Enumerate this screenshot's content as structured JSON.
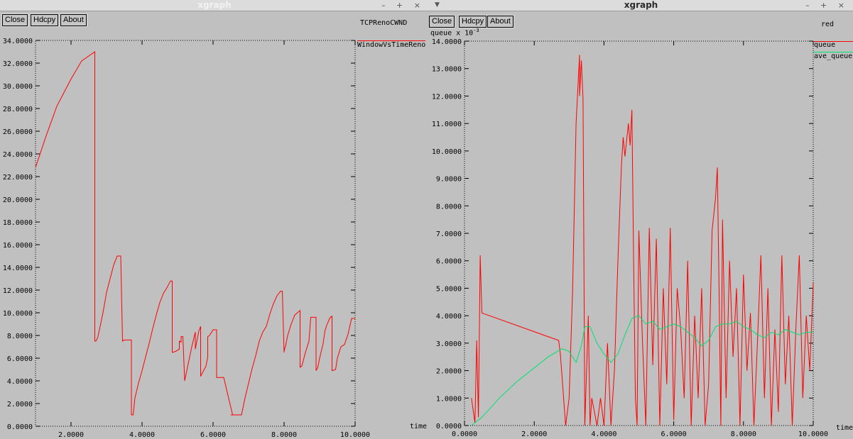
{
  "left_window": {
    "title": "xgraph",
    "wm_controls": "–  +  ×",
    "buttons": {
      "close": "Close",
      "hdcpy": "Hdcpy",
      "about": "About"
    },
    "graph_title": "TCPRenoCWND",
    "x_unit": "time",
    "legend": [
      {
        "label": "WindowVsTimeReno",
        "color": "#ff0000"
      }
    ]
  },
  "right_window": {
    "title": "xgraph",
    "wm_controls": "–  +  ×",
    "buttons": {
      "close": "Close",
      "hdcpy": "Hdcpy",
      "about": "About"
    },
    "graph_title": "red",
    "y_unit": "queue x 10",
    "y_unit_exponent": "-3",
    "x_unit": "time",
    "legend": [
      {
        "label": "queue",
        "color": "#ff0000"
      },
      {
        "label": "ave_queue",
        "color": "#00e070"
      }
    ]
  },
  "chart_data": [
    {
      "type": "line",
      "title": "TCPRenoCWND",
      "xlabel": "time",
      "ylabel": "",
      "xlim": [
        1.0,
        10.0
      ],
      "ylim": [
        0,
        34
      ],
      "x_ticks": [
        "2.0000",
        "4.0000",
        "6.0000",
        "8.0000",
        "10.0000"
      ],
      "x_tick_values": [
        2,
        4,
        6,
        8,
        10
      ],
      "y_ticks": [
        "0.0000",
        "2.0000",
        "4.0000",
        "6.0000",
        "8.0000",
        "10.0000",
        "12.0000",
        "14.0000",
        "16.0000",
        "18.0000",
        "20.0000",
        "22.0000",
        "24.0000",
        "26.0000",
        "28.0000",
        "30.0000",
        "32.0000",
        "34.0000"
      ],
      "y_tick_values": [
        0,
        2,
        4,
        6,
        8,
        10,
        12,
        14,
        16,
        18,
        20,
        22,
        24,
        26,
        28,
        30,
        32,
        34
      ],
      "grid": false,
      "legend_position": "top-right",
      "series": [
        {
          "name": "WindowVsTimeReno",
          "color": "#ff0000",
          "x": [
            1.0,
            1.3,
            1.6,
            2.0,
            2.3,
            2.67,
            2.67,
            2.7,
            2.75,
            2.8,
            2.9,
            3.0,
            3.1,
            3.2,
            3.3,
            3.4,
            3.45,
            3.45,
            3.5,
            3.6,
            3.7,
            3.7,
            3.75,
            3.8,
            3.9,
            4.0,
            4.1,
            4.2,
            4.3,
            4.4,
            4.5,
            4.6,
            4.7,
            4.8,
            4.85,
            4.85,
            4.95,
            5.05,
            5.05,
            5.1,
            5.1,
            5.15,
            5.2,
            5.3,
            5.4,
            5.5,
            5.5,
            5.6,
            5.65,
            5.65,
            5.8,
            5.85,
            5.85,
            5.9,
            6.0,
            6.1,
            6.1,
            6.3,
            6.3,
            6.55,
            6.5,
            6.8,
            6.8,
            6.9,
            7.0,
            7.1,
            7.2,
            7.3,
            7.4,
            7.5,
            7.6,
            7.7,
            7.8,
            7.9,
            7.95,
            8.0,
            8.0,
            8.05,
            8.1,
            8.2,
            8.3,
            8.45,
            8.45,
            8.5,
            8.6,
            8.7,
            8.75,
            8.9,
            8.9,
            8.95,
            9.0,
            9.1,
            9.15,
            9.2,
            9.3,
            9.35,
            9.35,
            9.45,
            9.5,
            9.6,
            9.7,
            9.8,
            9.9,
            10.0
          ],
          "y": [
            22.8,
            25.6,
            28.2,
            30.6,
            32.2,
            33.0,
            7.5,
            7.5,
            7.8,
            8.5,
            10.0,
            11.8,
            13.0,
            14.2,
            15.0,
            15.0,
            7.5,
            7.5,
            7.6,
            7.6,
            7.6,
            1.0,
            1.0,
            2.5,
            3.8,
            4.9,
            6.1,
            7.3,
            8.6,
            9.8,
            10.9,
            11.7,
            12.2,
            12.8,
            12.8,
            6.5,
            6.6,
            6.8,
            7.5,
            7.4,
            7.9,
            7.9,
            4.0,
            5.5,
            7.0,
            8.3,
            6.8,
            8.4,
            8.8,
            4.4,
            5.3,
            6.1,
            7.9,
            8.0,
            8.5,
            8.5,
            4.3,
            4.3,
            4.3,
            1.0,
            1.0,
            1.0,
            1.0,
            2.5,
            3.8,
            5.1,
            6.2,
            7.5,
            8.3,
            8.8,
            9.9,
            10.8,
            11.5,
            11.9,
            11.9,
            6.5,
            6.6,
            7.2,
            8.0,
            9.0,
            9.8,
            10.2,
            5.2,
            5.3,
            6.5,
            7.5,
            9.6,
            9.6,
            4.9,
            5.2,
            6.0,
            7.3,
            8.4,
            8.9,
            9.6,
            9.7,
            4.9,
            5.0,
            6.0,
            7.0,
            7.2,
            8.1,
            9.5,
            9.5
          ]
        }
      ]
    },
    {
      "type": "line",
      "title": "red",
      "xlabel": "time",
      "ylabel": "queue x 10-3",
      "xlim": [
        0.0,
        10.0
      ],
      "ylim": [
        0,
        14
      ],
      "x_ticks": [
        "0.0000",
        "2.0000",
        "4.0000",
        "6.0000",
        "8.0000",
        "10.0000"
      ],
      "x_tick_values": [
        0,
        2,
        4,
        6,
        8,
        10
      ],
      "y_ticks": [
        "0.0000",
        "1.0000",
        "2.0000",
        "3.0000",
        "4.0000",
        "5.0000",
        "6.0000",
        "7.0000",
        "8.0000",
        "9.0000",
        "10.0000",
        "11.0000",
        "12.0000",
        "13.0000",
        "14.0000"
      ],
      "y_tick_values": [
        0,
        1,
        2,
        3,
        4,
        5,
        6,
        7,
        8,
        9,
        10,
        11,
        12,
        13,
        14
      ],
      "grid": false,
      "legend_position": "top-right",
      "series": [
        {
          "name": "queue",
          "color": "#ff0000",
          "x": [
            0.2,
            0.3,
            0.35,
            0.4,
            0.45,
            0.5,
            2.7,
            2.75,
            2.9,
            3.0,
            3.1,
            3.2,
            3.3,
            3.3,
            3.35,
            3.4,
            3.45,
            3.55,
            3.6,
            3.65,
            3.8,
            3.9,
            4.0,
            4.1,
            4.2,
            4.3,
            4.4,
            4.5,
            4.55,
            4.6,
            4.7,
            4.75,
            4.8,
            4.85,
            4.9,
            4.95,
            5.0,
            5.1,
            5.2,
            5.3,
            5.4,
            5.5,
            5.6,
            5.7,
            5.8,
            5.9,
            6.0,
            6.1,
            6.2,
            6.3,
            6.4,
            6.5,
            6.6,
            6.7,
            6.8,
            6.9,
            7.0,
            7.1,
            7.2,
            7.25,
            7.3,
            7.35,
            7.4,
            7.5,
            7.6,
            7.7,
            7.8,
            7.9,
            8.0,
            8.1,
            8.2,
            8.3,
            8.4,
            8.5,
            8.6,
            8.7,
            8.8,
            8.9,
            9.0,
            9.1,
            9.2,
            9.3,
            9.4,
            9.5,
            9.6,
            9.7,
            9.8,
            9.9,
            10.0
          ],
          "y": [
            1.0,
            0.1,
            3.1,
            0.3,
            6.2,
            4.1,
            3.1,
            2.6,
            0.0,
            1.0,
            4.9,
            11.0,
            13.5,
            12.0,
            13.3,
            11.9,
            0.0,
            4.0,
            0.0,
            1.0,
            0.0,
            1.0,
            0.0,
            3.0,
            0.0,
            2.0,
            6.0,
            9.5,
            10.5,
            9.8,
            11.0,
            10.2,
            11.5,
            6.0,
            1.0,
            0.0,
            7.1,
            3.2,
            0.0,
            7.2,
            2.2,
            6.8,
            0.0,
            5.0,
            1.5,
            7.2,
            0.2,
            5.0,
            3.5,
            1.0,
            6.0,
            0.0,
            4.0,
            1.0,
            5.0,
            0.0,
            1.5,
            7.1,
            8.3,
            9.4,
            5.0,
            0.0,
            7.5,
            1.0,
            6.0,
            2.5,
            5.0,
            0.0,
            5.5,
            2.0,
            4.1,
            0.0,
            3.0,
            6.2,
            1.0,
            5.0,
            0.0,
            3.5,
            0.5,
            6.2,
            1.5,
            4.0,
            0.0,
            3.5,
            6.2,
            1.0,
            4.0,
            2.0,
            5.2
          ]
        },
        {
          "name": "ave_queue",
          "color": "#00e070",
          "x": [
            0.2,
            0.5,
            1.0,
            1.5,
            2.0,
            2.4,
            2.8,
            3.0,
            3.2,
            3.35,
            3.45,
            3.6,
            3.8,
            4.0,
            4.2,
            4.4,
            4.6,
            4.8,
            5.0,
            5.2,
            5.4,
            5.6,
            5.8,
            6.0,
            6.2,
            6.4,
            6.6,
            6.8,
            7.0,
            7.2,
            7.4,
            7.6,
            7.8,
            8.0,
            8.2,
            8.4,
            8.6,
            8.8,
            9.0,
            9.2,
            9.4,
            9.6,
            9.8,
            10.0
          ],
          "y": [
            0.0,
            0.3,
            1.0,
            1.6,
            2.1,
            2.5,
            2.8,
            2.7,
            2.3,
            2.9,
            3.6,
            3.6,
            3.0,
            2.6,
            2.3,
            2.6,
            3.3,
            3.9,
            4.0,
            3.7,
            3.8,
            3.5,
            3.6,
            3.7,
            3.6,
            3.4,
            3.2,
            2.9,
            3.1,
            3.6,
            3.7,
            3.7,
            3.8,
            3.6,
            3.5,
            3.3,
            3.2,
            3.4,
            3.3,
            3.5,
            3.4,
            3.3,
            3.4,
            3.4
          ]
        }
      ]
    }
  ]
}
